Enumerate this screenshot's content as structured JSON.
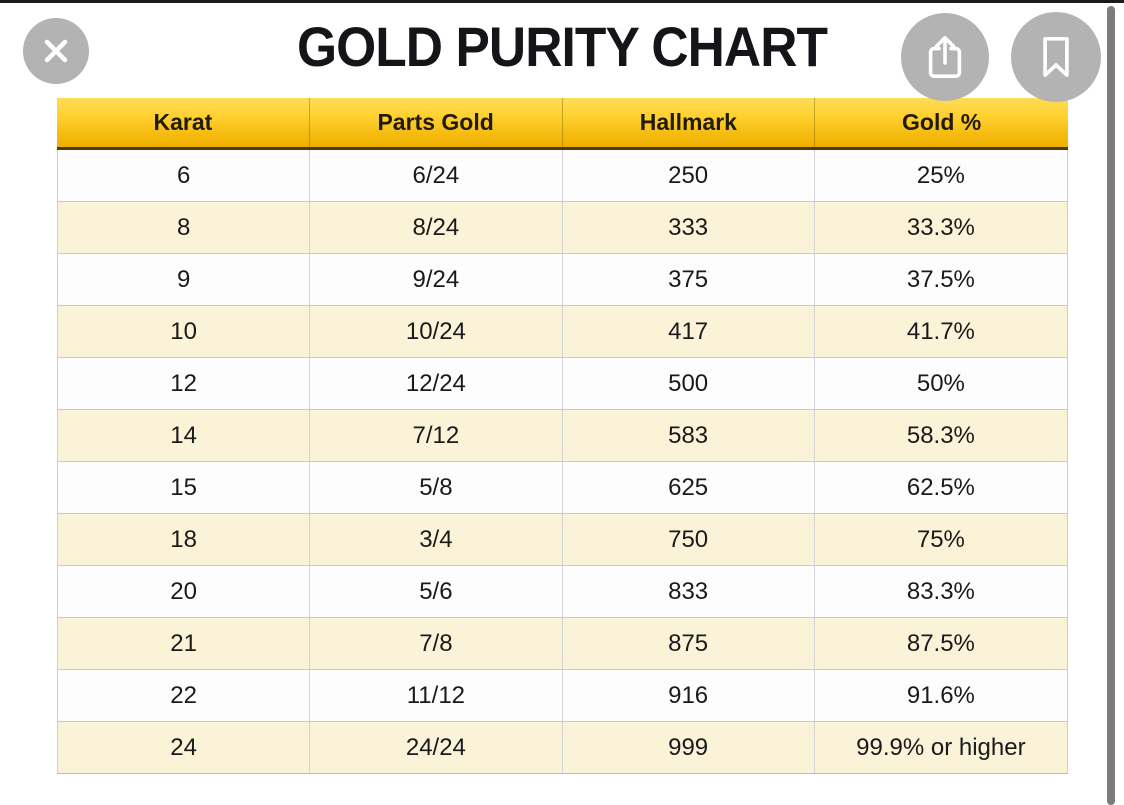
{
  "title": "GOLD PURITY CHART",
  "viewer": {
    "close_icon": "close-x",
    "share_icon": "ios-share",
    "bookmark_icon": "bookmark"
  },
  "chart_data": {
    "type": "table",
    "title": "GOLD PURITY CHART",
    "columns": [
      "Karat",
      "Parts Gold",
      "Hallmark",
      "Gold %"
    ],
    "rows": [
      [
        "6",
        "6/24",
        "250",
        "25%"
      ],
      [
        "8",
        "8/24",
        "333",
        "33.3%"
      ],
      [
        "9",
        "9/24",
        "375",
        "37.5%"
      ],
      [
        "10",
        "10/24",
        "417",
        "41.7%"
      ],
      [
        "12",
        "12/24",
        "500",
        "50%"
      ],
      [
        "14",
        "7/12",
        "583",
        "58.3%"
      ],
      [
        "15",
        "5/8",
        "625",
        "62.5%"
      ],
      [
        "18",
        "3/4",
        "750",
        "75%"
      ],
      [
        "20",
        "5/6",
        "833",
        "83.3%"
      ],
      [
        "21",
        "7/8",
        "875",
        "87.5%"
      ],
      [
        "22",
        "11/12",
        "916",
        "91.6%"
      ],
      [
        "24",
        "24/24",
        "999",
        "99.9% or higher"
      ]
    ]
  },
  "colors": {
    "header_gradient_top": "#ffdc55",
    "header_gradient_bottom": "#eeb002",
    "header_border": "#4a3f00",
    "row_white": "#fdfdfd",
    "row_cream": "#faf3d8",
    "divider": "#c9c9ce",
    "cell_text": "#1a1a1c",
    "button_gray": "#b3b3b3",
    "scrollbar_gray": "#7c7c7c",
    "title_text": "#151418"
  }
}
